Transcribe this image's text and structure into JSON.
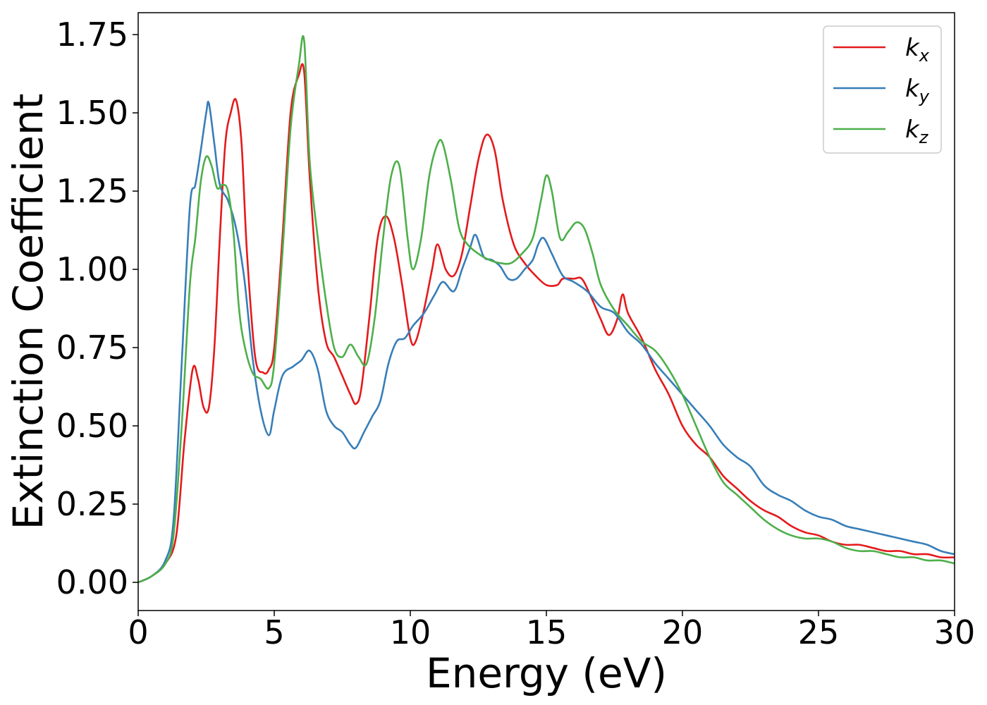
{
  "chart_data": {
    "type": "line",
    "xlabel": "Energy (eV)",
    "ylabel": "Extinction Coefficient",
    "xlim": [
      0,
      30
    ],
    "ylim": [
      -0.09,
      1.82
    ],
    "xticks": [
      0,
      5,
      10,
      15,
      20,
      25,
      30
    ],
    "xtick_labels": [
      "0",
      "5",
      "10",
      "15",
      "20",
      "25",
      "30"
    ],
    "yticks": [
      0.0,
      0.25,
      0.5,
      0.75,
      1.0,
      1.25,
      1.5,
      1.75
    ],
    "ytick_labels": [
      "0.00",
      "0.25",
      "0.50",
      "0.75",
      "1.00",
      "1.25",
      "1.50",
      "1.75"
    ],
    "grid": false,
    "legend_position": "top-right",
    "series": [
      {
        "name": "k",
        "subscript": "x",
        "color": "#e41a1c",
        "x": [
          0,
          0.5,
          1.0,
          1.4,
          1.7,
          2.0,
          2.2,
          2.4,
          2.6,
          2.8,
          3.0,
          3.2,
          3.4,
          3.6,
          3.8,
          4.0,
          4.3,
          4.6,
          4.8,
          5.0,
          5.3,
          5.6,
          5.9,
          6.1,
          6.3,
          6.6,
          6.9,
          7.2,
          7.5,
          7.8,
          8.0,
          8.2,
          8.5,
          8.8,
          9.1,
          9.4,
          9.7,
          10.0,
          10.2,
          10.5,
          10.8,
          11.0,
          11.3,
          11.6,
          11.9,
          12.2,
          12.5,
          12.8,
          13.1,
          13.4,
          13.8,
          14.2,
          14.6,
          15.0,
          15.4,
          15.6,
          16.0,
          16.3,
          16.6,
          17.0,
          17.3,
          17.6,
          17.8,
          18.0,
          18.5,
          19.0,
          19.5,
          20.0,
          20.5,
          21.0,
          21.5,
          22.0,
          22.5,
          23.0,
          23.5,
          24.0,
          24.5,
          25.0,
          25.5,
          26.0,
          26.5,
          27.0,
          27.5,
          28.0,
          28.5,
          29.0,
          29.5,
          30.0
        ],
        "y": [
          0,
          0.02,
          0.06,
          0.15,
          0.45,
          0.68,
          0.65,
          0.56,
          0.56,
          0.75,
          1.1,
          1.4,
          1.5,
          1.54,
          1.4,
          1.05,
          0.72,
          0.67,
          0.68,
          0.75,
          1.1,
          1.5,
          1.62,
          1.63,
          1.3,
          0.95,
          0.77,
          0.72,
          0.66,
          0.6,
          0.57,
          0.62,
          0.85,
          1.1,
          1.17,
          1.1,
          0.95,
          0.78,
          0.77,
          0.87,
          1.0,
          1.08,
          1.0,
          0.98,
          1.05,
          1.2,
          1.35,
          1.43,
          1.38,
          1.22,
          1.08,
          1.02,
          0.98,
          0.95,
          0.95,
          0.97,
          0.97,
          0.97,
          0.92,
          0.84,
          0.79,
          0.84,
          0.92,
          0.86,
          0.78,
          0.68,
          0.6,
          0.5,
          0.44,
          0.4,
          0.34,
          0.3,
          0.26,
          0.23,
          0.21,
          0.18,
          0.16,
          0.15,
          0.13,
          0.12,
          0.12,
          0.11,
          0.1,
          0.1,
          0.09,
          0.09,
          0.08,
          0.08
        ]
      },
      {
        "name": "k",
        "subscript": "y",
        "color": "#377eb8",
        "x": [
          0,
          0.5,
          1.0,
          1.3,
          1.6,
          1.9,
          2.1,
          2.3,
          2.5,
          2.6,
          2.8,
          3.0,
          3.3,
          3.6,
          3.9,
          4.2,
          4.5,
          4.8,
          5.0,
          5.3,
          5.7,
          6.0,
          6.3,
          6.6,
          6.9,
          7.2,
          7.5,
          7.8,
          8.0,
          8.3,
          8.6,
          8.9,
          9.2,
          9.5,
          9.8,
          10.1,
          10.5,
          10.9,
          11.2,
          11.6,
          11.9,
          12.2,
          12.4,
          12.7,
          13.0,
          13.3,
          13.6,
          13.9,
          14.2,
          14.5,
          14.7,
          14.9,
          15.2,
          15.6,
          16.0,
          16.5,
          17.0,
          17.5,
          18.0,
          18.5,
          19.0,
          19.5,
          20.0,
          20.5,
          21.0,
          21.5,
          22.0,
          22.5,
          23.0,
          23.5,
          24.0,
          24.5,
          25.0,
          25.5,
          26.0,
          26.5,
          27.0,
          27.5,
          28.0,
          28.5,
          29.0,
          29.5,
          30.0
        ],
        "y": [
          0,
          0.02,
          0.07,
          0.2,
          0.7,
          1.2,
          1.27,
          1.38,
          1.5,
          1.53,
          1.4,
          1.27,
          1.22,
          1.13,
          0.97,
          0.72,
          0.55,
          0.47,
          0.55,
          0.66,
          0.69,
          0.71,
          0.74,
          0.68,
          0.55,
          0.5,
          0.48,
          0.44,
          0.43,
          0.48,
          0.53,
          0.58,
          0.7,
          0.77,
          0.78,
          0.82,
          0.86,
          0.92,
          0.96,
          0.93,
          1.0,
          1.07,
          1.11,
          1.04,
          1.03,
          1.01,
          0.97,
          0.97,
          1.0,
          1.03,
          1.08,
          1.1,
          1.05,
          0.98,
          0.96,
          0.93,
          0.88,
          0.86,
          0.8,
          0.76,
          0.7,
          0.65,
          0.6,
          0.55,
          0.5,
          0.44,
          0.4,
          0.37,
          0.31,
          0.28,
          0.26,
          0.23,
          0.21,
          0.2,
          0.18,
          0.17,
          0.16,
          0.15,
          0.14,
          0.13,
          0.12,
          0.1,
          0.09
        ]
      },
      {
        "name": "k",
        "subscript": "z",
        "color": "#4daf4a",
        "x": [
          0,
          0.5,
          1.0,
          1.3,
          1.6,
          1.9,
          2.1,
          2.3,
          2.5,
          2.7,
          2.9,
          3.1,
          3.3,
          3.5,
          3.7,
          3.9,
          4.2,
          4.5,
          4.8,
          5.0,
          5.3,
          5.6,
          5.9,
          6.1,
          6.3,
          6.6,
          6.9,
          7.2,
          7.5,
          7.8,
          8.1,
          8.4,
          8.7,
          9.0,
          9.3,
          9.6,
          9.9,
          10.1,
          10.4,
          10.7,
          11.0,
          11.2,
          11.5,
          11.8,
          12.1,
          12.5,
          12.9,
          13.3,
          13.7,
          14.1,
          14.5,
          14.8,
          15.0,
          15.2,
          15.5,
          15.8,
          16.1,
          16.4,
          16.7,
          17.0,
          17.5,
          18.0,
          18.5,
          19.0,
          19.5,
          20.0,
          20.5,
          21.0,
          21.5,
          22.0,
          22.5,
          23.0,
          23.5,
          24.0,
          24.5,
          25.0,
          25.5,
          26.0,
          26.5,
          27.0,
          27.5,
          28.0,
          28.5,
          29.0,
          29.5,
          30.0
        ],
        "y": [
          0,
          0.02,
          0.06,
          0.15,
          0.5,
          0.95,
          1.1,
          1.28,
          1.36,
          1.33,
          1.26,
          1.27,
          1.25,
          1.12,
          0.88,
          0.76,
          0.67,
          0.65,
          0.62,
          0.7,
          1.05,
          1.45,
          1.65,
          1.73,
          1.35,
          1.1,
          0.9,
          0.75,
          0.72,
          0.76,
          0.72,
          0.7,
          0.85,
          1.1,
          1.3,
          1.33,
          1.1,
          1.0,
          1.1,
          1.3,
          1.4,
          1.4,
          1.28,
          1.13,
          1.08,
          1.05,
          1.03,
          1.02,
          1.02,
          1.05,
          1.1,
          1.22,
          1.3,
          1.25,
          1.1,
          1.12,
          1.15,
          1.13,
          1.05,
          0.95,
          0.87,
          0.82,
          0.77,
          0.74,
          0.68,
          0.6,
          0.5,
          0.4,
          0.32,
          0.28,
          0.24,
          0.2,
          0.17,
          0.15,
          0.14,
          0.14,
          0.13,
          0.11,
          0.1,
          0.1,
          0.09,
          0.08,
          0.08,
          0.07,
          0.07,
          0.06
        ]
      }
    ]
  }
}
